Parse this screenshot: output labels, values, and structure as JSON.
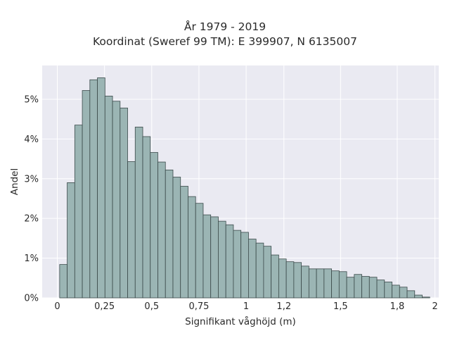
{
  "chart_data": {
    "type": "bar",
    "title": "År 1979 - 2019",
    "subtitle": "Koordinat (Sweref 99 TM): E 399907, N 6135007",
    "xlabel": "Signifikant våghöjd (m)",
    "ylabel": "Andel",
    "xlim": [
      -0.08,
      2.02
    ],
    "ylim": [
      0,
      5.85
    ],
    "x_ticks": [
      0,
      0.25,
      0.5,
      0.75,
      1,
      1.2,
      1.5,
      1.8,
      2
    ],
    "x_tick_labels": [
      "0",
      "0,25",
      "0,5",
      "0,75",
      "1",
      "1,2",
      "1,5",
      "1,8",
      "2"
    ],
    "y_ticks": [
      0,
      1,
      2,
      3,
      4,
      5
    ],
    "y_tick_labels": [
      "0%",
      "1%",
      "2%",
      "3%",
      "4%",
      "5%"
    ],
    "grid": true,
    "bin_start": 0.0125,
    "bin_width": 0.04,
    "values": [
      0.84,
      2.9,
      4.35,
      5.22,
      5.49,
      5.54,
      5.08,
      4.95,
      4.78,
      3.43,
      4.3,
      4.06,
      3.66,
      3.42,
      3.22,
      3.04,
      2.81,
      2.55,
      2.38,
      2.09,
      2.04,
      1.93,
      1.84,
      1.7,
      1.65,
      1.48,
      1.38,
      1.3,
      1.08,
      0.98,
      0.91,
      0.89,
      0.8,
      0.73,
      0.73,
      0.73,
      0.68,
      0.66,
      0.52,
      0.59,
      0.54,
      0.52,
      0.45,
      0.4,
      0.32,
      0.27,
      0.18,
      0.07,
      0.02
    ],
    "colors": {
      "bar_fill": "#9bb5b4",
      "bar_edge": "#3b4a4a",
      "plot_bg": "#eaeaf2",
      "grid": "#ffffff"
    }
  }
}
